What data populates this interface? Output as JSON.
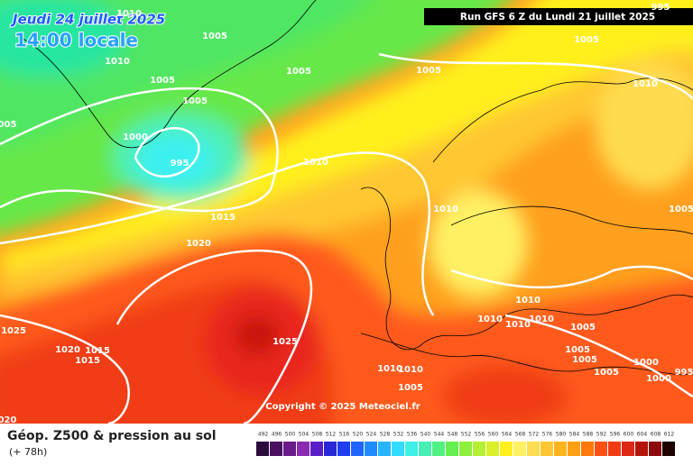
{
  "header": {
    "date": "Jeudi 24 juillet 2025",
    "time": "14:00 locale",
    "run": "Run GFS 6 Z du Lundi 21 juillet 2025"
  },
  "copyright": "Copyright © 2025 Meteociel.fr",
  "isobar_labels": [
    "1010",
    "995",
    "1005",
    "1005",
    "1010",
    "1005",
    "1005",
    "1005",
    "1005",
    "1010",
    "005",
    "1000",
    "995",
    "1010",
    "1010",
    "1005",
    "1015",
    "1020",
    "1010",
    "1010",
    "1010",
    "1010",
    "1005",
    "1025",
    "1025",
    "1020",
    "1015",
    "1015",
    "1005",
    "1005",
    "1000",
    "1010",
    "1010",
    "1005",
    "1005",
    "1000",
    "995",
    "020"
  ],
  "legend": {
    "title": "Géop. Z500 & pression au sol",
    "subtitle": "(+ 78h)",
    "scale": [
      492,
      496,
      500,
      504,
      508,
      512,
      516,
      520,
      524,
      528,
      532,
      536,
      540,
      544,
      548,
      552,
      556,
      560,
      564,
      568,
      572,
      576,
      580,
      584,
      588,
      592,
      596,
      600,
      604,
      608,
      612
    ],
    "colors": [
      "#2d0a3c",
      "#4b0f60",
      "#6a1a8a",
      "#8a2ab0",
      "#5a1ec8",
      "#2828d8",
      "#1e3cf0",
      "#1e64ff",
      "#1e8cff",
      "#28b4ff",
      "#32dcff",
      "#3cf0e6",
      "#46f0b4",
      "#50f082",
      "#64f050",
      "#8cf03c",
      "#b4f032",
      "#dcf028",
      "#fff01e",
      "#fff064",
      "#ffdc50",
      "#ffc832",
      "#ffb41e",
      "#ffa014",
      "#ff780a",
      "#ff5014",
      "#f03c14",
      "#dc2814",
      "#b4140a",
      "#8c0a0a",
      "#1e0000"
    ]
  }
}
